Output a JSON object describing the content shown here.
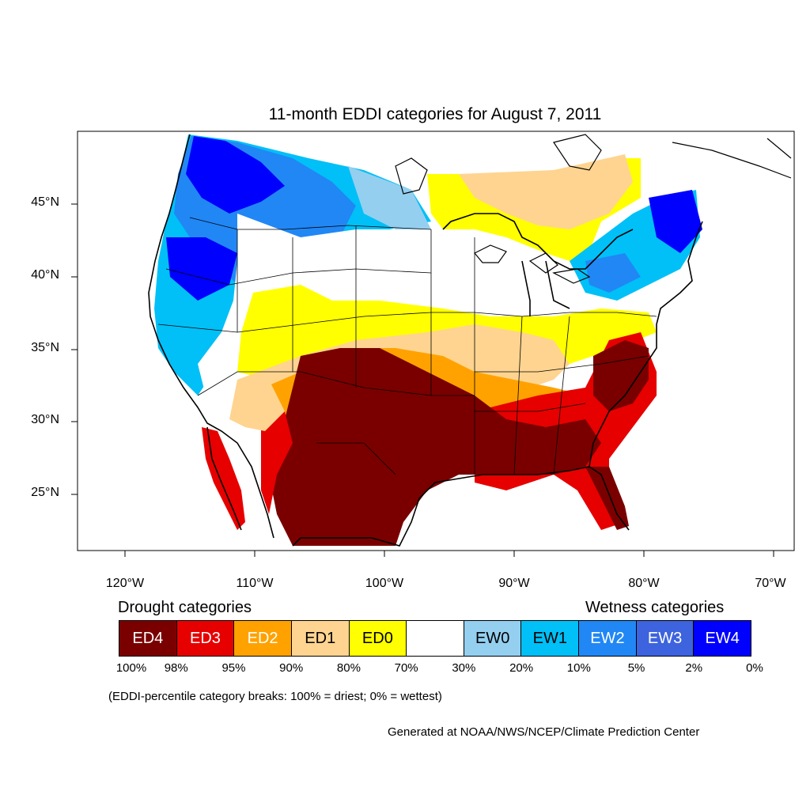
{
  "title": "11-month EDDI categories for August 7, 2011",
  "map": {
    "lat_labels": [
      "45°N",
      "40°N",
      "35°N",
      "30°N",
      "25°N"
    ],
    "lon_labels": [
      "120°W",
      "110°W",
      "100°W",
      "90°W",
      "80°W",
      "70°W"
    ]
  },
  "legend": {
    "drought_title": "Drought categories",
    "wetness_title": "Wetness categories",
    "categories": [
      {
        "label": "ED4",
        "color": "#7a0000",
        "text_color": "#ffffff"
      },
      {
        "label": "ED3",
        "color": "#e60000",
        "text_color": "#ffffff"
      },
      {
        "label": "ED2",
        "color": "#ffa200",
        "text_color": "#ffffff"
      },
      {
        "label": "ED1",
        "color": "#ffd490",
        "text_color": "#000000"
      },
      {
        "label": "ED0",
        "color": "#ffff00",
        "text_color": "#000000"
      },
      {
        "label": "",
        "color": "#ffffff",
        "text_color": "#000000"
      },
      {
        "label": "EW0",
        "color": "#94cff0",
        "text_color": "#000000"
      },
      {
        "label": "EW1",
        "color": "#00c0f7",
        "text_color": "#000000"
      },
      {
        "label": "EW2",
        "color": "#2187f5",
        "text_color": "#ffffff"
      },
      {
        "label": "EW3",
        "color": "#3d63de",
        "text_color": "#ffffff"
      },
      {
        "label": "EW4",
        "color": "#0000ff",
        "text_color": "#ffffff"
      }
    ],
    "percentiles": [
      "100%",
      "98%",
      "95%",
      "90%",
      "80%",
      "70%",
      "30%",
      "20%",
      "10%",
      "5%",
      "2%",
      "0%"
    ]
  },
  "footnote": "(EDDI-percentile category breaks: 100% = driest; 0% = wettest)",
  "credit": "Generated at NOAA/NWS/NCEP/Climate Prediction Center"
}
